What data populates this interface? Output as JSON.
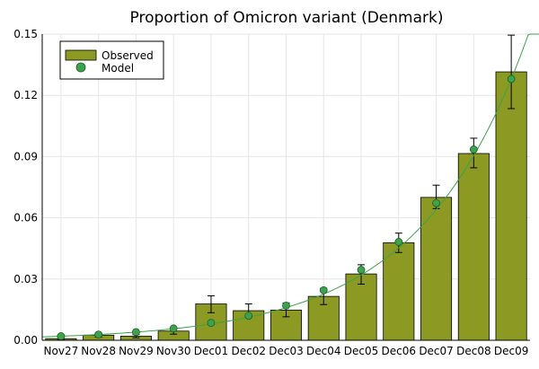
{
  "chart_data": {
    "type": "bar",
    "title": "Proportion of Omicron variant (Denmark)",
    "xlabel": "",
    "ylabel": "",
    "categories": [
      "Nov27",
      "Nov28",
      "Nov29",
      "Nov30",
      "Dec01",
      "Dec02",
      "Dec03",
      "Dec04",
      "Dec05",
      "Dec06",
      "Dec07",
      "Dec08",
      "Dec09"
    ],
    "ylim": [
      0,
      0.15
    ],
    "yticks": [
      0.0,
      0.03,
      0.06,
      0.09,
      0.12,
      0.15
    ],
    "ytick_labels": [
      "0.00",
      "0.03",
      "0.06",
      "0.09",
      "0.12",
      "0.15"
    ],
    "grid": true,
    "legend_position": "top-left",
    "series": [
      {
        "name": "Observed",
        "kind": "bar",
        "color": "#8c9a23",
        "values": [
          0.0008,
          0.0025,
          0.002,
          0.0045,
          0.0178,
          0.0145,
          0.0148,
          0.0215,
          0.0325,
          0.0478,
          0.07,
          0.0915,
          0.1315
        ],
        "error_low": [
          0.0003,
          0.0015,
          0.0012,
          0.003,
          0.0135,
          0.0112,
          0.0115,
          0.0175,
          0.0275,
          0.043,
          0.0645,
          0.0845,
          0.1135
        ],
        "error_high": [
          0.0013,
          0.0035,
          0.0028,
          0.006,
          0.0218,
          0.0178,
          0.0182,
          0.0255,
          0.037,
          0.0525,
          0.076,
          0.099,
          0.1495
        ]
      },
      {
        "name": "Model",
        "kind": "scatter",
        "color": "#3da14d",
        "values": [
          0.002,
          0.0028,
          0.004,
          0.0058,
          0.0085,
          0.012,
          0.017,
          0.0245,
          0.0345,
          0.0482,
          0.0672,
          0.0935,
          0.128
        ]
      }
    ]
  }
}
